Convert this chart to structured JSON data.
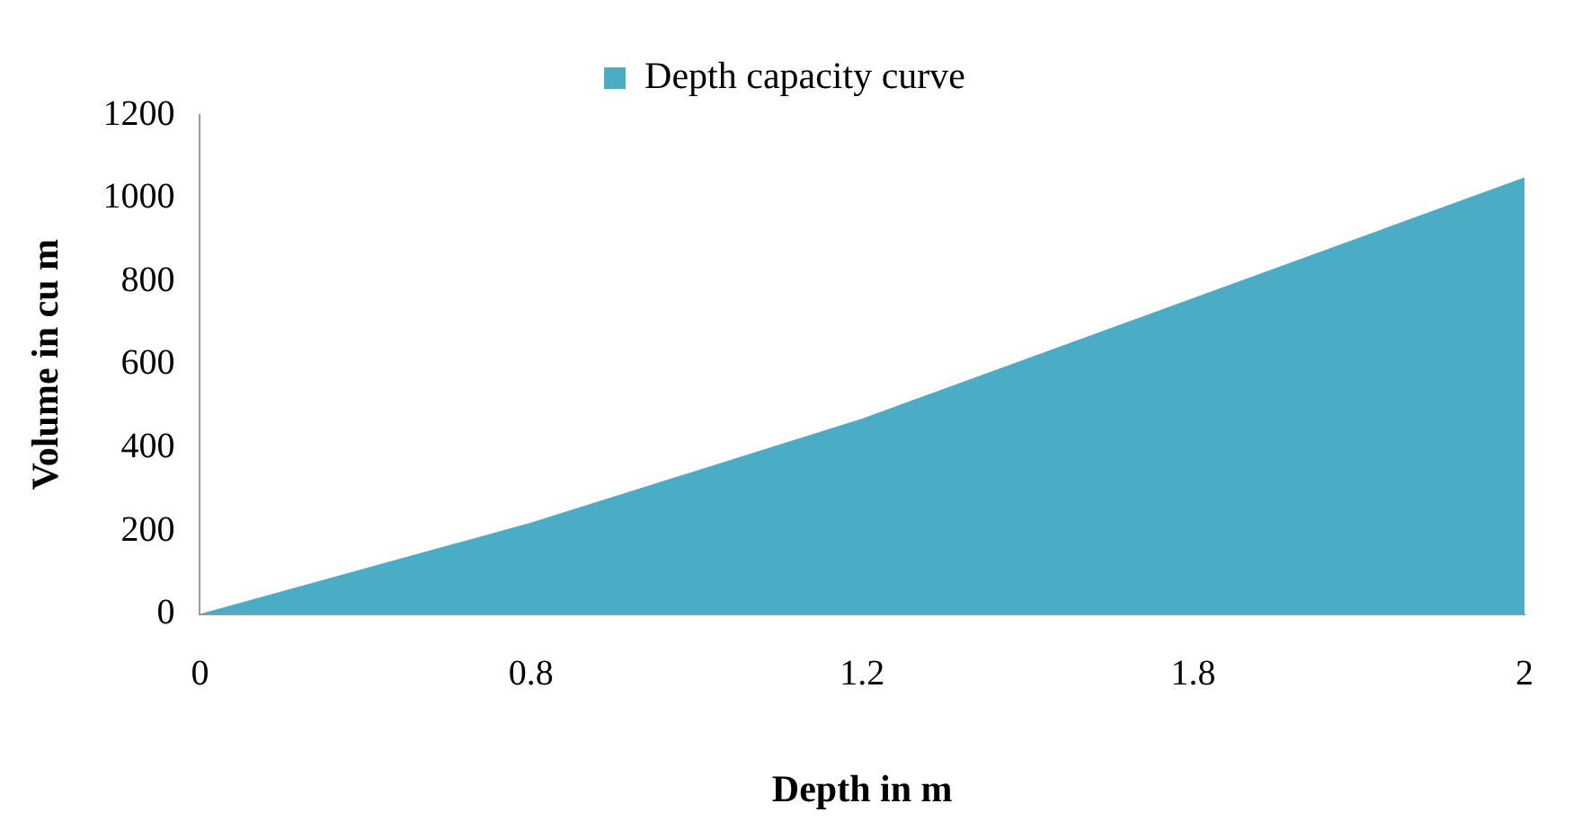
{
  "chart_data": {
    "type": "area",
    "xlabel": "Depth in m",
    "ylabel": "Volume in cu m",
    "categories": [
      "0",
      "0.8",
      "1.2",
      "1.8",
      "2"
    ],
    "series": [
      {
        "name": "Depth capacity curve",
        "color": "#4bacc6",
        "values": [
          0,
          220,
          470,
          760,
          1050
        ]
      }
    ],
    "ylim": [
      0,
      1200
    ],
    "yticks": [
      0,
      200,
      400,
      600,
      800,
      1000,
      1200
    ],
    "grid": false,
    "legend": "top"
  }
}
